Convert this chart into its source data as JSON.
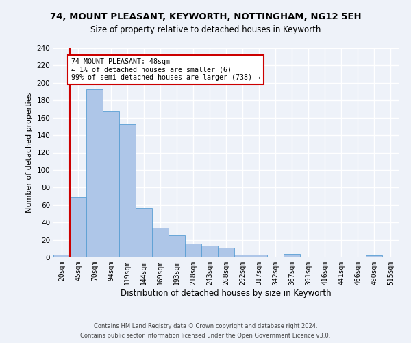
{
  "title1": "74, MOUNT PLEASANT, KEYWORTH, NOTTINGHAM, NG12 5EH",
  "title2": "Size of property relative to detached houses in Keyworth",
  "xlabel": "Distribution of detached houses by size in Keyworth",
  "ylabel": "Number of detached properties",
  "bar_labels": [
    "20sqm",
    "45sqm",
    "70sqm",
    "94sqm",
    "119sqm",
    "144sqm",
    "169sqm",
    "193sqm",
    "218sqm",
    "243sqm",
    "268sqm",
    "292sqm",
    "317sqm",
    "342sqm",
    "367sqm",
    "391sqm",
    "416sqm",
    "441sqm",
    "466sqm",
    "490sqm",
    "515sqm"
  ],
  "bar_values": [
    3,
    69,
    193,
    168,
    153,
    57,
    34,
    25,
    16,
    13,
    11,
    3,
    3,
    0,
    4,
    0,
    1,
    0,
    0,
    2,
    0
  ],
  "bar_color": "#aec6e8",
  "bar_edge_color": "#5a9fd4",
  "property_line_color": "#cc0000",
  "annotation_text": "74 MOUNT PLEASANT: 48sqm\n← 1% of detached houses are smaller (6)\n99% of semi-detached houses are larger (738) →",
  "annotation_box_color": "#ffffff",
  "annotation_box_edge_color": "#cc0000",
  "ylim": [
    0,
    240
  ],
  "yticks": [
    0,
    20,
    40,
    60,
    80,
    100,
    120,
    140,
    160,
    180,
    200,
    220,
    240
  ],
  "footer1": "Contains HM Land Registry data © Crown copyright and database right 2024.",
  "footer2": "Contains public sector information licensed under the Open Government Licence v3.0.",
  "bg_color": "#eef2f9",
  "grid_color": "#ffffff"
}
